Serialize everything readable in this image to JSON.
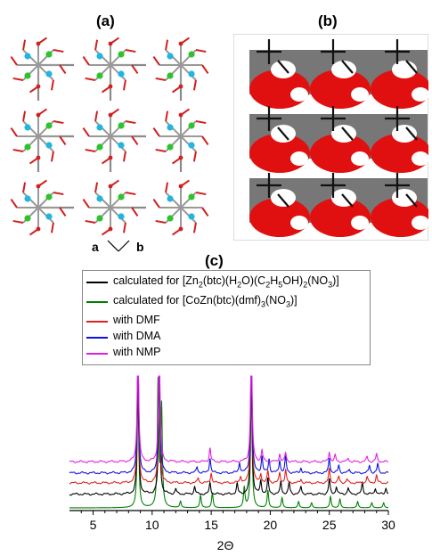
{
  "panels": {
    "a": "(a)",
    "b": "(b)",
    "c": "(c)"
  },
  "axis_labels": {
    "a": "a",
    "b": "b"
  },
  "legend": [
    {
      "prefix": "calculated for [Zn",
      "rest": "2(btc)(H2O)(C2H5OH)2(NO3)]",
      "color": "#000000"
    },
    {
      "prefix": "calculated for [CoZn(btc)(dmf)",
      "rest": "3(NO3)]",
      "color": "#008000"
    },
    {
      "prefix": "with DMF",
      "rest": "",
      "color": "#e02020"
    },
    {
      "prefix": "with DMA",
      "rest": "",
      "color": "#1010e0"
    },
    {
      "prefix": "with NMP",
      "rest": "",
      "color": "#e020e0"
    }
  ],
  "chart_data": {
    "type": "line",
    "xlabel": "2Θ",
    "ylabel": "",
    "xlim": [
      3,
      30
    ],
    "xticks": [
      5,
      10,
      15,
      20,
      25,
      30
    ],
    "series": [
      {
        "name": "calculated for [CoZn(btc)(dmf)3(NO3)]",
        "color": "#008000",
        "baseline": 0,
        "peaks": [
          [
            8.8,
            10
          ],
          [
            10.5,
            10
          ],
          [
            10.8,
            8
          ],
          [
            12.4,
            0.5
          ],
          [
            14.1,
            1.0
          ],
          [
            15.1,
            1.2
          ],
          [
            17.8,
            1.6
          ],
          [
            18.4,
            10
          ],
          [
            19.8,
            1.4
          ],
          [
            21.0,
            0.8
          ],
          [
            22.4,
            0.5
          ],
          [
            23.5,
            0.4
          ],
          [
            25.1,
            0.9
          ],
          [
            25.9,
            0.7
          ],
          [
            27.4,
            0.5
          ],
          [
            28.6,
            0.4
          ],
          [
            29.6,
            0.4
          ]
        ]
      },
      {
        "name": "calculated for [Zn2(btc)(H2O)(C2H5OH)2(NO3)]",
        "color": "#000000",
        "baseline": 1.1,
        "peaks": [
          [
            8.8,
            10
          ],
          [
            10.6,
            10
          ],
          [
            12.0,
            0.4
          ],
          [
            13.6,
            0.6
          ],
          [
            14.9,
            0.9
          ],
          [
            17.2,
            0.8
          ],
          [
            18.4,
            10
          ],
          [
            19.2,
            1.0
          ],
          [
            19.8,
            1.2
          ],
          [
            20.9,
            1.0
          ],
          [
            21.6,
            0.9
          ],
          [
            22.6,
            0.6
          ],
          [
            25.0,
            1.2
          ],
          [
            25.6,
            0.6
          ],
          [
            26.6,
            0.5
          ],
          [
            27.8,
            0.9
          ],
          [
            28.9,
            0.5
          ],
          [
            29.8,
            0.5
          ]
        ]
      },
      {
        "name": "with DMF",
        "color": "#e02020",
        "baseline": 2.0,
        "peaks": [
          [
            8.8,
            10
          ],
          [
            10.6,
            10
          ],
          [
            13.9,
            0.4
          ],
          [
            15.0,
            0.8
          ],
          [
            17.5,
            0.5
          ],
          [
            18.4,
            10
          ],
          [
            19.2,
            0.7
          ],
          [
            19.8,
            0.9
          ],
          [
            20.8,
            0.8
          ],
          [
            21.3,
            1.0
          ],
          [
            22.6,
            0.3
          ],
          [
            25.0,
            1.1
          ],
          [
            25.8,
            0.5
          ],
          [
            26.5,
            0.3
          ],
          [
            28.2,
            0.5
          ],
          [
            29.0,
            0.6
          ]
        ]
      },
      {
        "name": "with DMA",
        "color": "#1010e0",
        "baseline": 2.8,
        "peaks": [
          [
            8.8,
            10
          ],
          [
            10.6,
            10
          ],
          [
            13.8,
            0.5
          ],
          [
            14.9,
            1.2
          ],
          [
            17.4,
            0.8
          ],
          [
            18.4,
            10
          ],
          [
            19.3,
            1.3
          ],
          [
            19.9,
            1.1
          ],
          [
            20.8,
            1.0
          ],
          [
            21.3,
            1.3
          ],
          [
            22.6,
            0.4
          ],
          [
            25.0,
            1.2
          ],
          [
            25.8,
            0.6
          ],
          [
            26.7,
            0.3
          ],
          [
            28.4,
            0.6
          ],
          [
            29.1,
            0.7
          ]
        ]
      },
      {
        "name": "with NMP",
        "color": "#e020e0",
        "baseline": 3.7,
        "peaks": [
          [
            8.8,
            10
          ],
          [
            10.6,
            10
          ],
          [
            14.9,
            1.1
          ],
          [
            18.4,
            10
          ],
          [
            19.3,
            0.9
          ],
          [
            20.8,
            0.6
          ],
          [
            21.3,
            0.7
          ],
          [
            25.0,
            0.8
          ],
          [
            25.5,
            0.5
          ],
          [
            26.6,
            0.3
          ],
          [
            28.2,
            0.4
          ],
          [
            29.0,
            0.6
          ]
        ]
      }
    ]
  }
}
